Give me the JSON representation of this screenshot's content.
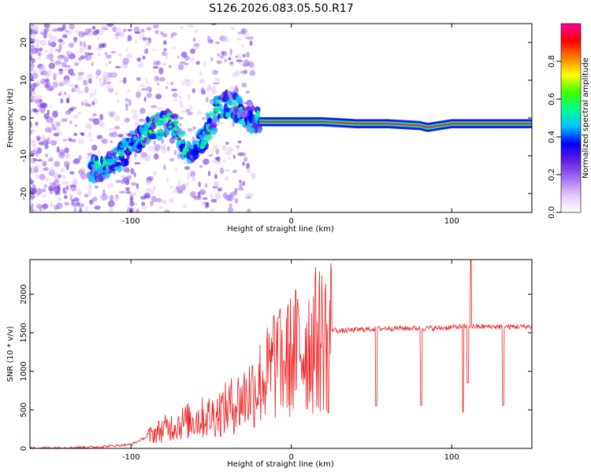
{
  "figure_title": "S126.2026.083.05.50.R17",
  "chart_data": [
    {
      "type": "heatmap",
      "title": "",
      "xlabel": "Height of straight line (km)",
      "ylabel": "Frequency (Hz)",
      "xlim": [
        -163,
        150
      ],
      "ylim": [
        -25,
        25
      ],
      "xticks": [
        -100,
        0,
        100
      ],
      "xtick_labels": [
        "-100",
        "0",
        "100"
      ],
      "yticks": [
        -20,
        -10,
        0,
        10,
        20
      ],
      "ytick_labels": [
        "-20",
        "-10",
        "0",
        "10",
        "20"
      ],
      "colorbar": {
        "label": "Normalized spectral amplitude",
        "range": [
          0,
          1
        ],
        "ticks": [
          0,
          0.2,
          0.4,
          0.6,
          0.8
        ],
        "tick_labels": [
          "0.0",
          "0.2",
          "0.4",
          "0.6",
          "0.8"
        ],
        "colors": [
          "#ffffff",
          "#e4c8f8",
          "#a070f0",
          "#6020e0",
          "#0000ff",
          "#00c0ff",
          "#00ff90",
          "#40ff00",
          "#ffff00",
          "#ff8000",
          "#ff0000",
          "#ff00a0"
        ]
      },
      "ridge": {
        "x": [
          -125,
          -115,
          -105,
          -95,
          -85,
          -75,
          -65,
          -55,
          -45,
          -38,
          -30,
          -20,
          -10,
          0,
          20,
          40,
          60,
          80,
          85,
          100,
          120,
          150
        ],
        "y": [
          -14,
          -13,
          -10,
          -5,
          -2,
          -1,
          -9,
          -6,
          3,
          4,
          1,
          -1,
          -1,
          -1,
          -1,
          -1.5,
          -1.5,
          -2,
          -2.5,
          -1.5,
          -1.5,
          -1.5
        ]
      }
    },
    {
      "type": "line",
      "title": "",
      "xlabel": "Height of straight line (km)",
      "ylabel": "SNR (10 * v/v)",
      "xlim": [
        -163,
        150
      ],
      "ylim": [
        0,
        2450
      ],
      "xticks": [
        -100,
        0,
        100
      ],
      "xtick_labels": [
        "-100",
        "0",
        "100"
      ],
      "yticks": [
        0,
        500,
        1000,
        1500,
        2000
      ],
      "ytick_labels": [
        "0",
        "500",
        "1000",
        "1500",
        "2000"
      ],
      "color": "#ee2222",
      "series": [
        {
          "name": "SNR",
          "x": [
            -163,
            -140,
            -120,
            -100,
            -90,
            -80,
            -70,
            -60,
            -50,
            -40,
            -30,
            -20,
            -15,
            -10,
            -5,
            0,
            5,
            10,
            15,
            20,
            25,
            30,
            40,
            50,
            60,
            70,
            80,
            90,
            100,
            105,
            110,
            115,
            120,
            130,
            140,
            150
          ],
          "y": [
            5,
            10,
            20,
            50,
            150,
            250,
            320,
            380,
            420,
            520,
            650,
            850,
            950,
            1050,
            1100,
            1200,
            1300,
            1350,
            1400,
            1450,
            1550,
            1520,
            1540,
            1550,
            1560,
            1560,
            1560,
            1560,
            1570,
            1580,
            1580,
            1580,
            1580,
            1580,
            1580,
            1580
          ]
        }
      ],
      "dips": [
        {
          "x": 23,
          "y": 460
        },
        {
          "x": 53,
          "y": 550
        },
        {
          "x": 81,
          "y": 560
        },
        {
          "x": 107,
          "y": 470
        },
        {
          "x": 110,
          "y": 850
        },
        {
          "x": 132,
          "y": 560
        }
      ],
      "spikes": [
        {
          "x": -11,
          "y": 1720
        },
        {
          "x": -8,
          "y": 1700
        },
        {
          "x": 112,
          "y": 2450
        }
      ]
    }
  ]
}
